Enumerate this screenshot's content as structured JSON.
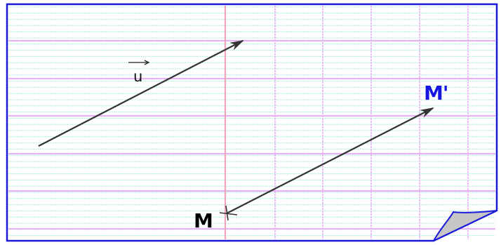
{
  "figure": {
    "vector_label": "u",
    "point_label": "M",
    "image_label": "M'",
    "colors": {
      "frame": "#1a1ad8",
      "paper": "#ffffff",
      "major_lines": "#e6b3f3",
      "minor_lines": "#a8eedd",
      "margin_line": "#f3a6bb",
      "arrows": "#333333",
      "point_label": "#000000",
      "image_label": "#1616e0",
      "page_curl": "#c6c6c6"
    },
    "icons": [
      "arrow-icon",
      "cross-mark-icon",
      "page-curl-icon"
    ]
  }
}
